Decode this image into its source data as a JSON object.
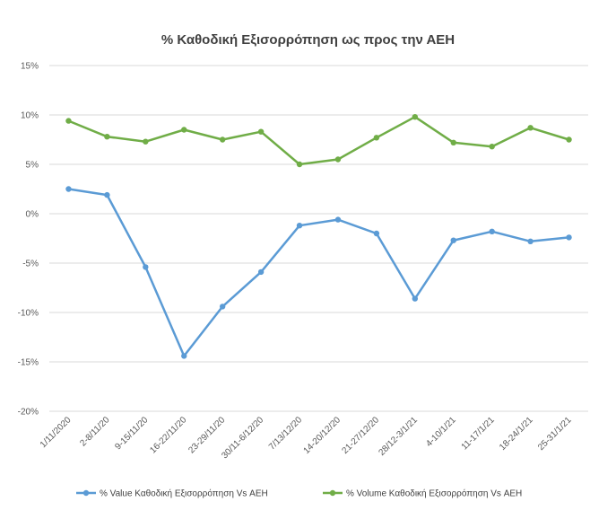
{
  "chart_data": {
    "type": "line",
    "title": "% Καθοδική Εξισορρόπηση ως προς την ΑΕΗ",
    "xlabel": "",
    "ylabel": "",
    "categories": [
      "1/11/2020",
      "2-8/11/20",
      "9-15/11/20",
      "16-22/11/20",
      "23-29/11/20",
      "30/11-6/12/20",
      "7/13/12/20",
      "14-20/12/20",
      "21-27/12/20",
      "28/12-3/1/21",
      "4-10/1/21",
      "11-17/1/21",
      "18-24/1/21",
      "25-31/1/21"
    ],
    "ylim": [
      -20,
      15
    ],
    "yticks": [
      -20,
      -15,
      -10,
      -5,
      0,
      5,
      10,
      15
    ],
    "ytick_labels": [
      "-20%",
      "-15%",
      "-10%",
      "-5%",
      "0%",
      "5%",
      "10%",
      "15%"
    ],
    "grid": true,
    "legend_position": "bottom",
    "series": [
      {
        "name": "% Value Καθοδική Εξισορρόπηση Vs ΑΕΗ",
        "color": "#5b9bd5",
        "values": [
          2.5,
          1.9,
          -5.4,
          -14.4,
          -9.4,
          -5.9,
          -1.2,
          -0.6,
          -2.0,
          -8.6,
          -2.7,
          -1.8,
          -2.8,
          -2.4
        ]
      },
      {
        "name": "% Volume Καθοδική Εξισορρόπηση Vs ΑΕΗ",
        "color": "#70ad47",
        "values": [
          9.4,
          7.8,
          7.3,
          8.5,
          7.5,
          8.3,
          5.0,
          5.5,
          7.7,
          9.8,
          7.2,
          6.8,
          8.7,
          7.5
        ]
      }
    ]
  }
}
